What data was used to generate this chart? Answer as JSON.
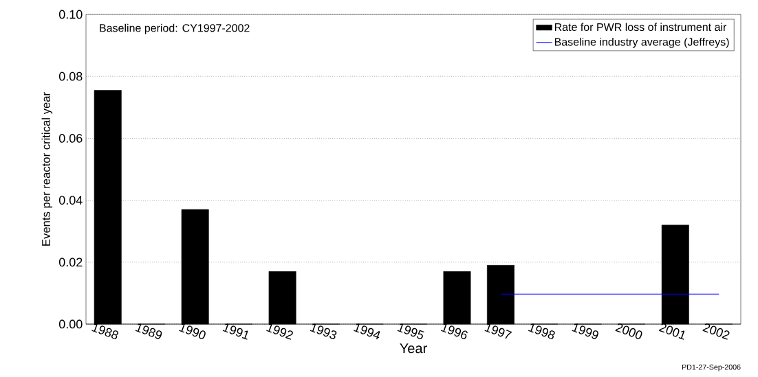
{
  "chart_data": {
    "type": "bar",
    "xlabel": "Year",
    "ylabel": "Events per reactor critical year",
    "categories": [
      "1988",
      "1989",
      "1990",
      "1991",
      "1992",
      "1993",
      "1994",
      "1995",
      "1996",
      "1997",
      "1998",
      "1999",
      "2000",
      "2001",
      "2002"
    ],
    "series": [
      {
        "name": "Rate for PWR loss of instrument air",
        "color": "#000000",
        "values": [
          0.0755,
          0,
          0.037,
          0,
          0.017,
          0,
          0,
          0,
          0.017,
          0.019,
          0,
          0,
          0,
          0.032,
          0
        ]
      },
      {
        "name": "Baseline industry average (Jeffreys)",
        "type": "line",
        "color": "#0000ff",
        "values": [
          null,
          null,
          null,
          null,
          null,
          null,
          null,
          null,
          null,
          0.0097,
          0.0097,
          0.0097,
          0.0097,
          0.0097,
          0.0097
        ]
      }
    ],
    "ylim": [
      0,
      0.1
    ],
    "yticks": [
      {
        "value": 0,
        "label": "0.00"
      },
      {
        "value": 0.02,
        "label": "0.02"
      },
      {
        "value": 0.04,
        "label": "0.04"
      },
      {
        "value": 0.06,
        "label": "0.06"
      },
      {
        "value": 0.08,
        "label": "0.08"
      },
      {
        "value": 0.1,
        "label": "0.10"
      }
    ],
    "grid": "y",
    "legend": "top right",
    "annotations": [
      "Baseline period:  CY1997-2002",
      "PD1-27-Sep-2006"
    ]
  }
}
